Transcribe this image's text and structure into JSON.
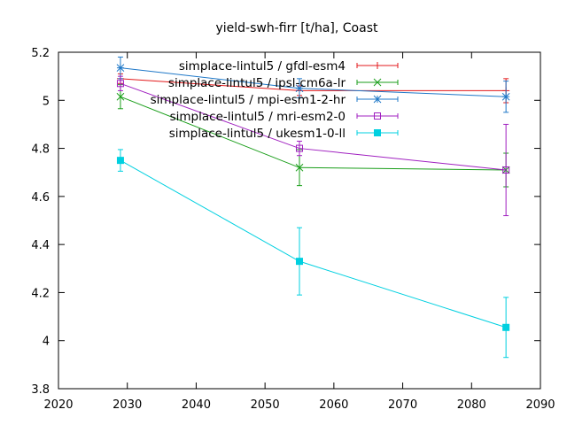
{
  "chart_data": {
    "type": "line",
    "title": "yield-swh-firr [t/ha], Coast",
    "xlabel": "",
    "ylabel": "",
    "xlim": [
      2020,
      2090
    ],
    "ylim": [
      3.8,
      5.2
    ],
    "x_ticks": [
      "2020",
      "2030",
      "2040",
      "2050",
      "2060",
      "2070",
      "2080",
      "2090"
    ],
    "y_ticks": [
      "3.8",
      "4",
      "4.2",
      "4.4",
      "4.6",
      "4.8",
      "5",
      "5.2"
    ],
    "grid": false,
    "legend_position": "top-right",
    "error_bars": true,
    "series": [
      {
        "name": "simplace-lintul5 / gfdl-esm4",
        "color": "#e31a1c",
        "marker": "plus",
        "x": [
          2029,
          2055,
          2085
        ],
        "y": [
          5.09,
          5.04,
          5.04
        ],
        "yerr": [
          0.02,
          0.02,
          0.05
        ]
      },
      {
        "name": "simplace-lintul5 / ipsl-cm6a-lr",
        "color": "#1a9e1a",
        "marker": "cross",
        "x": [
          2029,
          2055,
          2085
        ],
        "y": [
          5.015,
          4.72,
          4.71
        ],
        "yerr": [
          0.05,
          0.075,
          0.07
        ]
      },
      {
        "name": "simplace-lintul5 / mpi-esm1-2-hr",
        "color": "#1f78c8",
        "marker": "star",
        "x": [
          2029,
          2055,
          2085
        ],
        "y": [
          5.135,
          5.05,
          5.015
        ],
        "yerr": [
          0.045,
          0.04,
          0.065
        ]
      },
      {
        "name": "simplace-lintul5 / mri-esm2-0",
        "color": "#a020c0",
        "marker": "open-square",
        "x": [
          2029,
          2055,
          2085
        ],
        "y": [
          5.07,
          4.8,
          4.71
        ],
        "yerr": [
          0.03,
          0.03,
          0.19
        ]
      },
      {
        "name": "simplace-lintul5 / ukesm1-0-ll",
        "color": "#00d0e0",
        "marker": "filled-square",
        "x": [
          2029,
          2055,
          2085
        ],
        "y": [
          4.75,
          4.33,
          4.055
        ],
        "yerr": [
          0.045,
          0.14,
          0.125
        ]
      }
    ]
  }
}
